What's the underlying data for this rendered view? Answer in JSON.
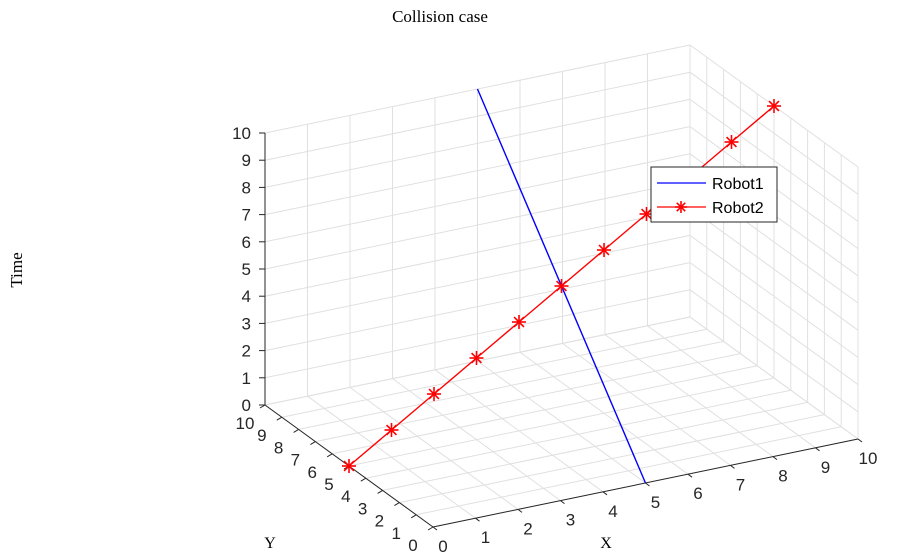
{
  "chart_data": {
    "type": "line",
    "title": "Collision case",
    "zlabel": "Time",
    "xlabel": "X",
    "ylabel": "Y",
    "xlim": [
      0,
      10
    ],
    "ylim": [
      0,
      10
    ],
    "zlim": [
      0,
      10
    ],
    "x_ticks": [
      "0",
      "1",
      "2",
      "3",
      "4",
      "5",
      "6",
      "7",
      "8",
      "9",
      "10"
    ],
    "y_ticks": [
      "0",
      "1",
      "2",
      "3",
      "4",
      "5",
      "6",
      "7",
      "8",
      "9",
      "10"
    ],
    "z_ticks": [
      "0",
      "1",
      "2",
      "3",
      "4",
      "5",
      "6",
      "7",
      "8",
      "9",
      "10"
    ],
    "grid": true,
    "legend_position": "top-right",
    "series": [
      {
        "name": "Robot1",
        "color": "#0000ff",
        "marker": "none",
        "x": [
          5,
          5
        ],
        "y": [
          0,
          10
        ],
        "z": [
          0,
          10
        ]
      },
      {
        "name": "Robot2",
        "color": "#ff0000",
        "marker": "asterisk",
        "x": [
          0,
          1,
          2,
          3,
          4,
          5,
          6,
          7,
          8,
          9,
          10
        ],
        "y": [
          5,
          5,
          5,
          5,
          5,
          5,
          5,
          5,
          5,
          5,
          5
        ],
        "z": [
          0,
          1,
          2,
          3,
          4,
          5,
          6,
          7,
          8,
          9,
          10
        ]
      }
    ]
  }
}
